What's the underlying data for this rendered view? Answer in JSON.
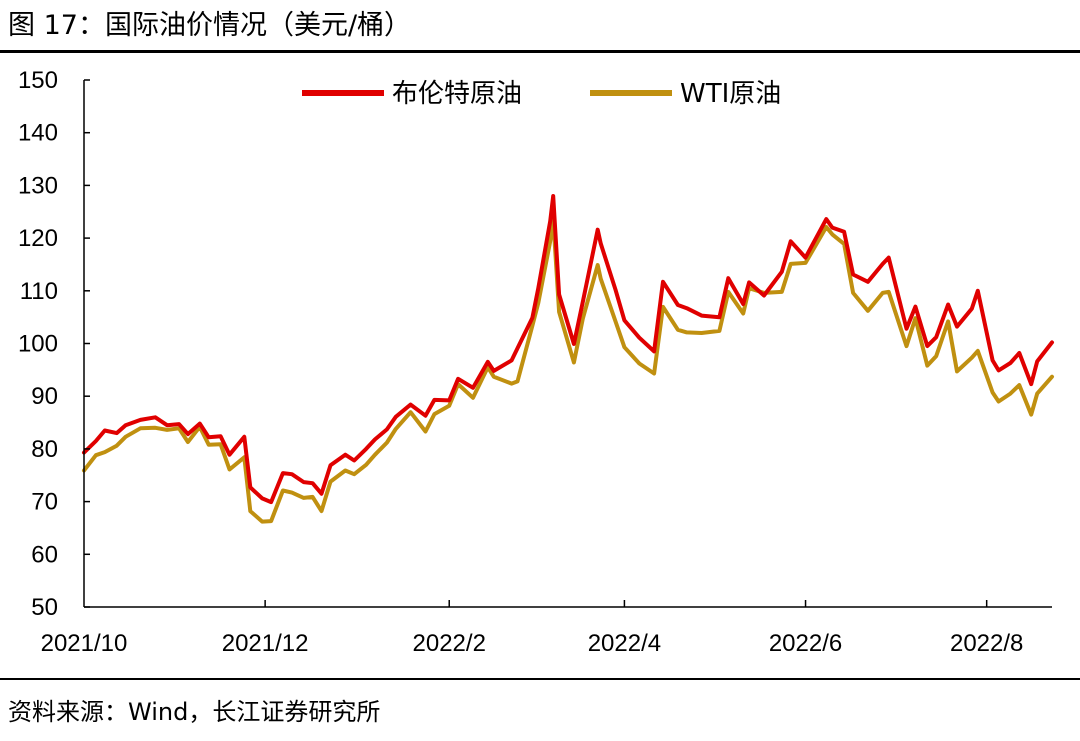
{
  "figure": {
    "title": "图 17：国际油价情况（美元/桶）",
    "source": "资料来源：Wind，长江证券研究所"
  },
  "chart_data": {
    "type": "line",
    "xlabel": "",
    "ylabel": "",
    "ylim": [
      50,
      150
    ],
    "y_ticks": [
      50,
      60,
      70,
      80,
      90,
      100,
      110,
      120,
      130,
      140,
      150
    ],
    "x_tick_labels": [
      "2021/10",
      "2021/12",
      "2022/2",
      "2022/4",
      "2022/6",
      "2022/8"
    ],
    "x_range": [
      "2021-10-01",
      "2022-08-23"
    ],
    "grid": false,
    "legend_position": "top-center",
    "series": [
      {
        "name": "布伦特原油",
        "color": "#E00000",
        "points": [
          [
            "2021-10-01",
            79.3
          ],
          [
            "2021-10-05",
            81.5
          ],
          [
            "2021-10-08",
            83.5
          ],
          [
            "2021-10-12",
            83.0
          ],
          [
            "2021-10-15",
            84.5
          ],
          [
            "2021-10-20",
            85.5
          ],
          [
            "2021-10-25",
            86.0
          ],
          [
            "2021-10-29",
            84.5
          ],
          [
            "2021-11-02",
            84.7
          ],
          [
            "2021-11-05",
            82.8
          ],
          [
            "2021-11-09",
            84.8
          ],
          [
            "2021-11-12",
            82.2
          ],
          [
            "2021-11-16",
            82.4
          ],
          [
            "2021-11-19",
            78.9
          ],
          [
            "2021-11-24",
            82.3
          ],
          [
            "2021-11-26",
            72.7
          ],
          [
            "2021-11-30",
            70.6
          ],
          [
            "2021-12-03",
            69.9
          ],
          [
            "2021-12-07",
            75.4
          ],
          [
            "2021-12-10",
            75.2
          ],
          [
            "2021-12-14",
            73.7
          ],
          [
            "2021-12-17",
            73.5
          ],
          [
            "2021-12-20",
            71.5
          ],
          [
            "2021-12-23",
            76.9
          ],
          [
            "2021-12-28",
            78.9
          ],
          [
            "2021-12-31",
            77.8
          ],
          [
            "2022-01-04",
            80.0
          ],
          [
            "2022-01-07",
            81.8
          ],
          [
            "2022-01-11",
            83.7
          ],
          [
            "2022-01-14",
            86.1
          ],
          [
            "2022-01-19",
            88.4
          ],
          [
            "2022-01-24",
            86.3
          ],
          [
            "2022-01-27",
            89.3
          ],
          [
            "2022-02-01",
            89.2
          ],
          [
            "2022-02-04",
            93.3
          ],
          [
            "2022-02-09",
            91.6
          ],
          [
            "2022-02-14",
            96.5
          ],
          [
            "2022-02-16",
            94.8
          ],
          [
            "2022-02-22",
            96.8
          ],
          [
            "2022-02-24",
            99.1
          ],
          [
            "2022-03-01",
            104.9
          ],
          [
            "2022-03-03",
            110.5
          ],
          [
            "2022-03-07",
            123.2
          ],
          [
            "2022-03-08",
            127.98
          ],
          [
            "2022-03-10",
            109.3
          ],
          [
            "2022-03-15",
            99.9
          ],
          [
            "2022-03-18",
            107.9
          ],
          [
            "2022-03-23",
            121.6
          ],
          [
            "2022-03-24",
            119.0
          ],
          [
            "2022-03-29",
            110.2
          ],
          [
            "2022-04-01",
            104.4
          ],
          [
            "2022-04-06",
            101.1
          ],
          [
            "2022-04-11",
            98.5
          ],
          [
            "2022-04-14",
            111.7
          ],
          [
            "2022-04-19",
            107.3
          ],
          [
            "2022-04-22",
            106.7
          ],
          [
            "2022-04-27",
            105.3
          ],
          [
            "2022-05-03",
            104.97
          ],
          [
            "2022-05-06",
            112.4
          ],
          [
            "2022-05-11",
            107.5
          ],
          [
            "2022-05-13",
            111.6
          ],
          [
            "2022-05-18",
            109.1
          ],
          [
            "2022-05-24",
            113.6
          ],
          [
            "2022-05-27",
            119.4
          ],
          [
            "2022-06-01",
            116.3
          ],
          [
            "2022-06-08",
            123.6
          ],
          [
            "2022-06-10",
            122.0
          ],
          [
            "2022-06-14",
            121.2
          ],
          [
            "2022-06-17",
            113.1
          ],
          [
            "2022-06-22",
            111.7
          ],
          [
            "2022-06-27",
            115.1
          ],
          [
            "2022-06-29",
            116.3
          ],
          [
            "2022-07-05",
            102.8
          ],
          [
            "2022-07-08",
            107.0
          ],
          [
            "2022-07-12",
            99.5
          ],
          [
            "2022-07-15",
            101.2
          ],
          [
            "2022-07-19",
            107.4
          ],
          [
            "2022-07-22",
            103.2
          ],
          [
            "2022-07-27",
            106.6
          ],
          [
            "2022-07-29",
            110.0
          ],
          [
            "2022-08-03",
            96.8
          ],
          [
            "2022-08-05",
            94.9
          ],
          [
            "2022-08-09",
            96.3
          ],
          [
            "2022-08-12",
            98.2
          ],
          [
            "2022-08-16",
            92.3
          ],
          [
            "2022-08-18",
            96.6
          ],
          [
            "2022-08-23",
            100.2
          ]
        ]
      },
      {
        "name": "WTI原油",
        "color": "#C09010",
        "points": [
          [
            "2021-10-01",
            75.9
          ],
          [
            "2021-10-05",
            78.8
          ],
          [
            "2021-10-08",
            79.4
          ],
          [
            "2021-10-12",
            80.6
          ],
          [
            "2021-10-15",
            82.3
          ],
          [
            "2021-10-20",
            83.9
          ],
          [
            "2021-10-25",
            84.0
          ],
          [
            "2021-10-29",
            83.6
          ],
          [
            "2021-11-02",
            83.9
          ],
          [
            "2021-11-05",
            81.3
          ],
          [
            "2021-11-09",
            84.2
          ],
          [
            "2021-11-12",
            80.8
          ],
          [
            "2021-11-16",
            80.9
          ],
          [
            "2021-11-19",
            76.1
          ],
          [
            "2021-11-24",
            78.4
          ],
          [
            "2021-11-26",
            68.2
          ],
          [
            "2021-11-30",
            66.2
          ],
          [
            "2021-12-03",
            66.3
          ],
          [
            "2021-12-07",
            72.1
          ],
          [
            "2021-12-10",
            71.7
          ],
          [
            "2021-12-14",
            70.7
          ],
          [
            "2021-12-17",
            70.9
          ],
          [
            "2021-12-20",
            68.2
          ],
          [
            "2021-12-23",
            73.8
          ],
          [
            "2021-12-28",
            75.9
          ],
          [
            "2021-12-31",
            75.2
          ],
          [
            "2022-01-04",
            76.99
          ],
          [
            "2022-01-07",
            78.9
          ],
          [
            "2022-01-11",
            81.2
          ],
          [
            "2022-01-14",
            83.8
          ],
          [
            "2022-01-19",
            86.96
          ],
          [
            "2022-01-24",
            83.3
          ],
          [
            "2022-01-27",
            86.6
          ],
          [
            "2022-02-01",
            88.2
          ],
          [
            "2022-02-04",
            92.3
          ],
          [
            "2022-02-09",
            89.7
          ],
          [
            "2022-02-14",
            95.5
          ],
          [
            "2022-02-16",
            93.7
          ],
          [
            "2022-02-22",
            92.4
          ],
          [
            "2022-02-24",
            92.8
          ],
          [
            "2022-03-01",
            103.4
          ],
          [
            "2022-03-03",
            107.7
          ],
          [
            "2022-03-07",
            119.4
          ],
          [
            "2022-03-08",
            123.7
          ],
          [
            "2022-03-10",
            106.0
          ],
          [
            "2022-03-15",
            96.4
          ],
          [
            "2022-03-18",
            104.7
          ],
          [
            "2022-03-23",
            114.9
          ],
          [
            "2022-03-24",
            112.3
          ],
          [
            "2022-03-29",
            104.2
          ],
          [
            "2022-04-01",
            99.3
          ],
          [
            "2022-04-06",
            96.2
          ],
          [
            "2022-04-11",
            94.3
          ],
          [
            "2022-04-14",
            106.95
          ],
          [
            "2022-04-19",
            102.6
          ],
          [
            "2022-04-22",
            102.1
          ],
          [
            "2022-04-27",
            102.0
          ],
          [
            "2022-05-03",
            102.4
          ],
          [
            "2022-05-06",
            109.8
          ],
          [
            "2022-05-11",
            105.7
          ],
          [
            "2022-05-13",
            110.5
          ],
          [
            "2022-05-18",
            109.6
          ],
          [
            "2022-05-24",
            109.8
          ],
          [
            "2022-05-27",
            115.1
          ],
          [
            "2022-06-01",
            115.3
          ],
          [
            "2022-06-08",
            122.1
          ],
          [
            "2022-06-10",
            120.7
          ],
          [
            "2022-06-14",
            118.9
          ],
          [
            "2022-06-17",
            109.6
          ],
          [
            "2022-06-22",
            106.2
          ],
          [
            "2022-06-27",
            109.6
          ],
          [
            "2022-06-29",
            109.8
          ],
          [
            "2022-07-05",
            99.5
          ],
          [
            "2022-07-08",
            104.8
          ],
          [
            "2022-07-12",
            95.8
          ],
          [
            "2022-07-15",
            97.6
          ],
          [
            "2022-07-19",
            104.2
          ],
          [
            "2022-07-22",
            94.7
          ],
          [
            "2022-07-27",
            97.3
          ],
          [
            "2022-07-29",
            98.6
          ],
          [
            "2022-08-03",
            90.7
          ],
          [
            "2022-08-05",
            89.0
          ],
          [
            "2022-08-09",
            90.5
          ],
          [
            "2022-08-12",
            92.1
          ],
          [
            "2022-08-16",
            86.5
          ],
          [
            "2022-08-18",
            90.5
          ],
          [
            "2022-08-23",
            93.7
          ]
        ]
      }
    ]
  }
}
